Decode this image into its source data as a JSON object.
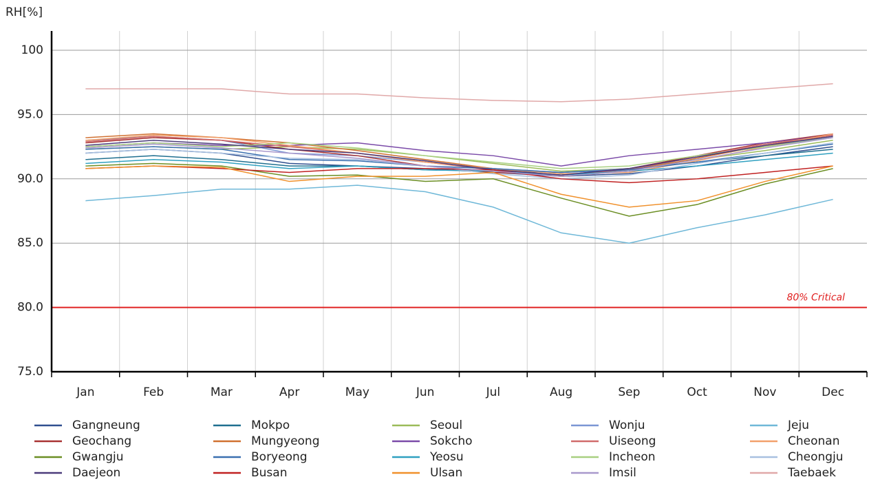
{
  "chart_data": {
    "type": "line",
    "y_label": "RH[%]",
    "categories": [
      "Jan",
      "Feb",
      "Mar",
      "Apr",
      "May",
      "Jun",
      "Jul",
      "Aug",
      "Sep",
      "Oct",
      "Nov",
      "Dec"
    ],
    "ylim": [
      75,
      101.5
    ],
    "yticks": [
      {
        "value": 75,
        "label": "75.0"
      },
      {
        "value": 80,
        "label": "80.0"
      },
      {
        "value": 85,
        "label": "85.0"
      },
      {
        "value": 90,
        "label": "90.0"
      },
      {
        "value": 95,
        "label": "95.0"
      },
      100
    ],
    "grid": true,
    "reference_line": {
      "value": 80,
      "label": "80%  Critical",
      "color": "#e02020"
    },
    "series": [
      {
        "name": "Gangneung",
        "color": "#2f4f8f",
        "values": [
          92.0,
          92.3,
          92.0,
          91.2,
          91.0,
          90.8,
          90.5,
          90.2,
          90.4,
          91.0,
          91.8,
          92.5
        ]
      },
      {
        "name": "Mokpo",
        "color": "#1f6f8f",
        "values": [
          91.5,
          91.8,
          91.5,
          91.0,
          91.0,
          90.7,
          90.6,
          90.5,
          90.8,
          91.3,
          91.8,
          92.3
        ]
      },
      {
        "name": "Seoul",
        "color": "#9bbb59",
        "values": [
          92.3,
          92.5,
          92.3,
          92.5,
          92.3,
          91.8,
          91.2,
          90.6,
          90.8,
          91.5,
          92.2,
          93.0
        ]
      },
      {
        "name": "Wonju",
        "color": "#7a96d4",
        "values": [
          93.0,
          93.3,
          93.0,
          92.0,
          91.8,
          91.3,
          90.8,
          90.5,
          90.8,
          91.8,
          92.5,
          93.3
        ]
      },
      {
        "name": "Jeju",
        "color": "#6fb8d8",
        "values": [
          88.3,
          88.7,
          89.2,
          89.2,
          89.5,
          89.0,
          87.8,
          85.8,
          85.0,
          86.2,
          87.2,
          88.4
        ]
      },
      {
        "name": "Geochang",
        "color": "#a83232",
        "values": [
          92.8,
          93.2,
          93.0,
          92.3,
          91.8,
          91.0,
          90.5,
          90.3,
          90.8,
          91.8,
          92.8,
          93.5
        ]
      },
      {
        "name": "Mungyeong",
        "color": "#d07030",
        "values": [
          93.2,
          93.5,
          93.2,
          92.8,
          92.2,
          91.5,
          90.8,
          90.2,
          90.6,
          91.6,
          92.6,
          93.4
        ]
      },
      {
        "name": "Sokcho",
        "color": "#7a4aa8",
        "values": [
          92.5,
          92.8,
          92.6,
          92.6,
          92.8,
          92.2,
          91.8,
          91.0,
          91.8,
          92.3,
          92.8,
          93.4
        ]
      },
      {
        "name": "Uiseong",
        "color": "#d06a6a",
        "values": [
          92.9,
          93.3,
          93.0,
          92.5,
          92.0,
          91.3,
          90.7,
          90.3,
          90.7,
          91.7,
          92.7,
          93.4
        ]
      },
      {
        "name": "Cheonan",
        "color": "#f2a06a",
        "values": [
          93.0,
          93.4,
          93.2,
          92.6,
          92.0,
          91.3,
          90.8,
          90.4,
          90.5,
          91.4,
          92.5,
          93.5
        ]
      },
      {
        "name": "Gwangju",
        "color": "#6b8e23",
        "values": [
          91.0,
          91.2,
          91.0,
          90.2,
          90.3,
          89.8,
          90.0,
          88.5,
          87.1,
          88.0,
          89.6,
          90.8
        ]
      },
      {
        "name": "Boryeong",
        "color": "#3a6fb0",
        "values": [
          92.3,
          92.5,
          92.3,
          91.5,
          91.4,
          91.0,
          90.8,
          90.5,
          90.7,
          91.3,
          92.0,
          92.7
        ]
      },
      {
        "name": "Yeosu",
        "color": "#2fa0c0",
        "values": [
          91.2,
          91.5,
          91.3,
          90.8,
          91.0,
          90.7,
          90.6,
          90.3,
          90.6,
          91.0,
          91.5,
          92.0
        ]
      },
      {
        "name": "Incheon",
        "color": "#a8d080",
        "values": [
          92.5,
          92.8,
          92.5,
          92.8,
          92.4,
          91.8,
          91.3,
          90.8,
          91.0,
          91.8,
          92.5,
          93.2
        ]
      },
      {
        "name": "Cheongju",
        "color": "#a8c0e0",
        "values": [
          92.0,
          92.3,
          92.0,
          91.6,
          91.5,
          91.0,
          90.4,
          90.0,
          90.3,
          91.2,
          92.0,
          92.8
        ]
      },
      {
        "name": "Daejeon",
        "color": "#4a3a7a",
        "values": [
          92.6,
          93.0,
          92.7,
          92.3,
          92.0,
          91.4,
          90.7,
          90.3,
          90.8,
          91.7,
          92.6,
          93.3
        ]
      },
      {
        "name": "Busan",
        "color": "#c02020",
        "values": [
          90.8,
          91.0,
          90.8,
          90.5,
          90.8,
          90.8,
          90.7,
          90.0,
          89.7,
          90.0,
          90.5,
          91.0
        ]
      },
      {
        "name": "Ulsan",
        "color": "#f0902a",
        "values": [
          90.8,
          91.0,
          90.9,
          89.8,
          90.2,
          90.2,
          90.5,
          88.8,
          87.8,
          88.3,
          89.8,
          91.0
        ]
      },
      {
        "name": "Imsil",
        "color": "#a898cc",
        "values": [
          92.4,
          92.7,
          92.4,
          92.0,
          91.6,
          91.0,
          90.6,
          90.2,
          90.6,
          91.5,
          92.4,
          93.2
        ]
      },
      {
        "name": "Taebaek",
        "color": "#e0a8a8",
        "values": [
          97.0,
          97.0,
          97.0,
          96.6,
          96.6,
          96.3,
          96.1,
          96.0,
          96.2,
          96.6,
          97.0,
          97.4
        ]
      }
    ]
  }
}
